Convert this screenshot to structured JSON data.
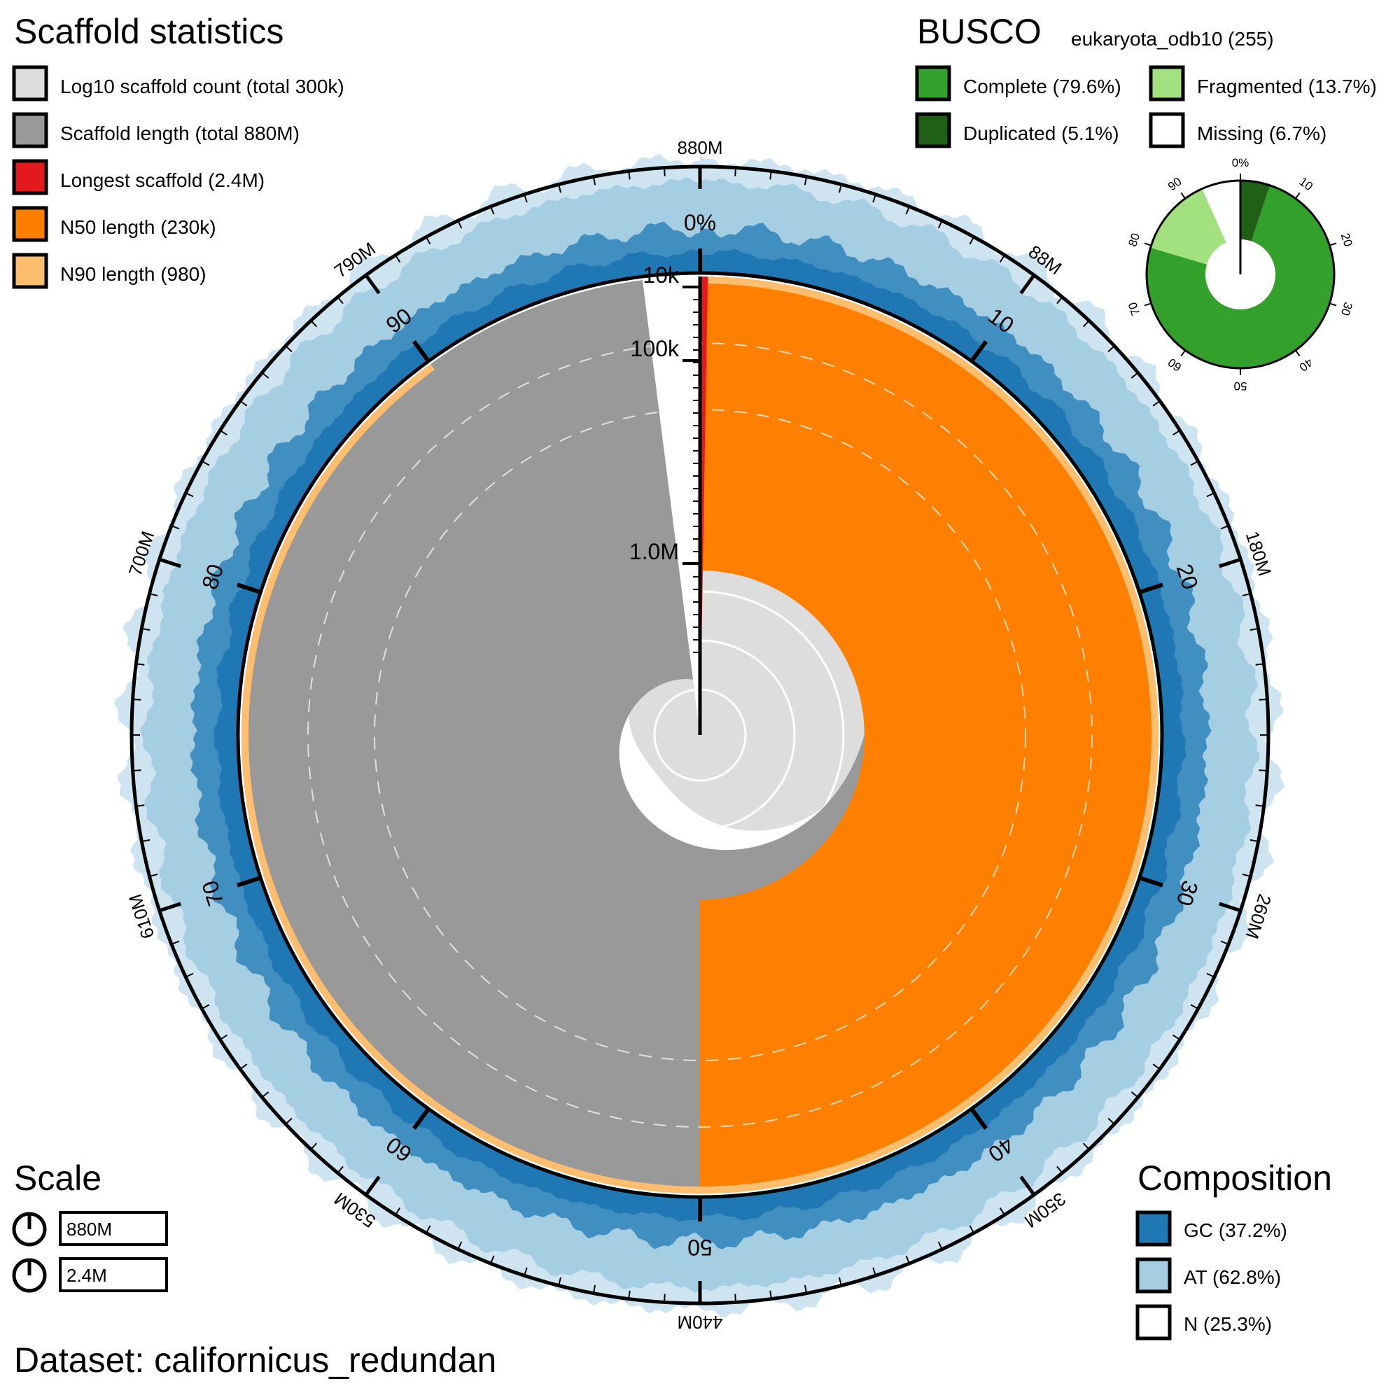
{
  "colors": {
    "count": "#dddddd",
    "length": "#999999",
    "longest": "#e31a1c",
    "n50": "#ff7f00",
    "n90": "#fdbf6f",
    "gc": "#1f78b4",
    "at": "#a6cee3",
    "n": "#ffffff",
    "complete": "#33a02c",
    "duplicated": "#1f5f16",
    "fragmented": "#a3e080",
    "missing": "#ffffff",
    "axis": "#000000"
  },
  "legend": {
    "title": "Scaffold statistics",
    "items": [
      {
        "key": "count",
        "label": "Log10 scaffold count (total 300k)"
      },
      {
        "key": "length",
        "label": "Scaffold length (total 880M)"
      },
      {
        "key": "longest",
        "label": "Longest scaffold (2.4M)"
      },
      {
        "key": "n50",
        "label": "N50 length (230k)"
      },
      {
        "key": "n90",
        "label": "N90 length (980)"
      }
    ]
  },
  "busco": {
    "title": "BUSCO",
    "subtitle": "eukaryota_odb10 (255)",
    "items": [
      {
        "key": "complete",
        "label": "Complete (79.6%)"
      },
      {
        "key": "fragmented",
        "label": "Fragmented (13.7%)"
      },
      {
        "key": "duplicated",
        "label": "Duplicated (5.1%)"
      },
      {
        "key": "missing",
        "label": "Missing (6.7%)"
      }
    ],
    "ticks": [
      "0%",
      "10",
      "20",
      "30",
      "40",
      "50",
      "60",
      "70",
      "80",
      "90"
    ]
  },
  "scale": {
    "title": "Scale",
    "values": [
      "880M",
      "2.4M"
    ]
  },
  "composition": {
    "title": "Composition",
    "items": [
      {
        "key": "gc",
        "label": "GC (37.2%)"
      },
      {
        "key": "at",
        "label": "AT (62.8%)"
      },
      {
        "key": "n",
        "label": "N (25.3%)"
      }
    ]
  },
  "dataset_label": "Dataset: californicus_redundan",
  "chart_data": {
    "type": "snail",
    "total_length": "880M",
    "scaffold_count": "300k",
    "longest_scaffold": "2.4M",
    "n50": "230k",
    "n90": "980",
    "outer_axis_labels": [
      "880M",
      "88M",
      "180M",
      "260M",
      "350M",
      "440M",
      "530M",
      "610M",
      "700M",
      "790M"
    ],
    "percent_labels": [
      "0%",
      "10",
      "20",
      "30",
      "40",
      "50",
      "60",
      "70",
      "80",
      "90"
    ],
    "radial_axis_labels": [
      "10k",
      "100k",
      "1.0M"
    ],
    "longest_fraction_pct": 0.27,
    "n50_fraction_pct": 50,
    "n90_fraction_pct": 90,
    "length_fraction_pct": 98,
    "count_fraction_pct": 100,
    "composition_pct": {
      "gc": 37.2,
      "at": 62.8,
      "n": 25.3
    },
    "busco_pct": {
      "complete": 79.6,
      "duplicated": 5.1,
      "fragmented": 13.7,
      "missing": 6.7
    }
  }
}
